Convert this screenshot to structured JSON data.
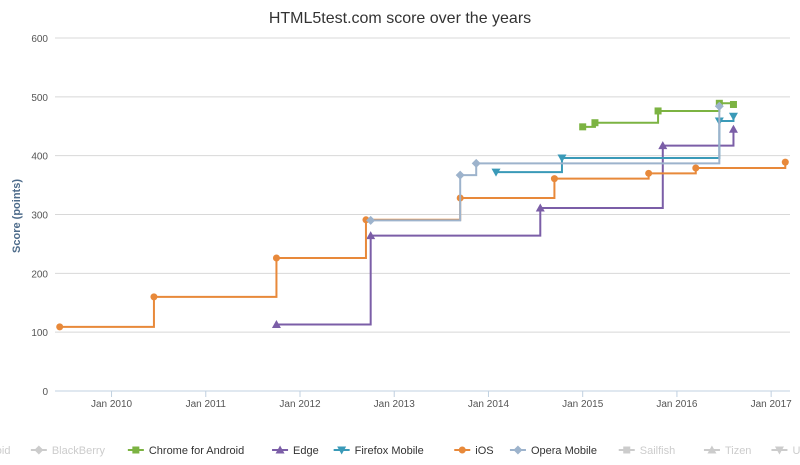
{
  "chart_data": {
    "type": "line",
    "step": true,
    "title": "HTML5test.com score over the years",
    "xlabel": "",
    "ylabel": "Score (points)",
    "xlim": [
      2009.4,
      2017.2
    ],
    "ylim": [
      0,
      600
    ],
    "yticks": [
      0,
      100,
      200,
      300,
      400,
      500,
      600
    ],
    "xticks": [
      {
        "value": 2010.0,
        "label": "Jan 2010"
      },
      {
        "value": 2011.0,
        "label": "Jan 2011"
      },
      {
        "value": 2012.0,
        "label": "Jan 2012"
      },
      {
        "value": 2013.0,
        "label": "Jan 2013"
      },
      {
        "value": 2014.0,
        "label": "Jan 2014"
      },
      {
        "value": 2015.0,
        "label": "Jan 2015"
      },
      {
        "value": 2016.0,
        "label": "Jan 2016"
      },
      {
        "value": 2017.0,
        "label": "Jan 2017"
      }
    ],
    "legend_position": "bottom",
    "series": [
      {
        "name": "Android",
        "color": "#cccccc",
        "marker": "circle",
        "visible": false,
        "points": []
      },
      {
        "name": "BlackBerry",
        "color": "#cccccc",
        "marker": "diamond",
        "visible": false,
        "points": []
      },
      {
        "name": "Chrome for Android",
        "color": "#7cb342",
        "marker": "square",
        "visible": true,
        "points": [
          [
            2015.0,
            449
          ],
          [
            2015.13,
            456
          ],
          [
            2015.8,
            476
          ],
          [
            2016.45,
            489
          ],
          [
            2016.6,
            487
          ]
        ]
      },
      {
        "name": "Edge",
        "color": "#7b5ea7",
        "marker": "triangle",
        "visible": true,
        "points": [
          [
            2011.75,
            113
          ],
          [
            2012.75,
            264
          ],
          [
            2014.55,
            311
          ],
          [
            2015.85,
            417
          ],
          [
            2016.6,
            445
          ]
        ]
      },
      {
        "name": "Firefox Mobile",
        "color": "#3a9ab8",
        "marker": "triangle-down",
        "visible": true,
        "points": [
          [
            2014.08,
            372
          ],
          [
            2014.78,
            396
          ],
          [
            2016.45,
            459
          ],
          [
            2016.6,
            467
          ]
        ]
      },
      {
        "name": "iOS",
        "color": "#e8893a",
        "marker": "circle",
        "visible": true,
        "points": [
          [
            2009.45,
            109
          ],
          [
            2010.45,
            160
          ],
          [
            2011.75,
            226
          ],
          [
            2012.7,
            291
          ],
          [
            2013.7,
            328
          ],
          [
            2014.7,
            361
          ],
          [
            2015.7,
            370
          ],
          [
            2016.2,
            379
          ],
          [
            2017.15,
            389
          ]
        ]
      },
      {
        "name": "Opera Mobile",
        "color": "#9db3cc",
        "marker": "diamond",
        "visible": true,
        "points": [
          [
            2012.75,
            290
          ],
          [
            2013.7,
            367
          ],
          [
            2013.87,
            387
          ],
          [
            2016.45,
            484
          ]
        ]
      },
      {
        "name": "Sailfish",
        "color": "#cccccc",
        "marker": "square",
        "visible": false,
        "points": []
      },
      {
        "name": "Tizen",
        "color": "#cccccc",
        "marker": "triangle",
        "visible": false,
        "points": []
      },
      {
        "name": "UC Browser",
        "color": "#cccccc",
        "marker": "triangle-down",
        "visible": false,
        "points": []
      }
    ]
  }
}
